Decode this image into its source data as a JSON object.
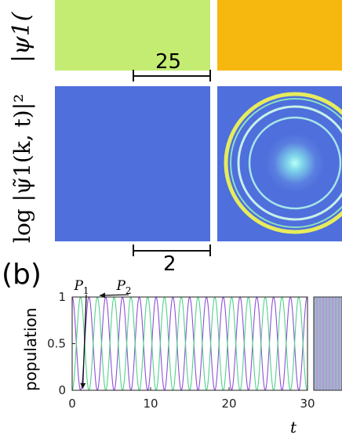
{
  "top_row": {
    "ylabel": "|ψ1(",
    "left_color": "#c4ec72",
    "right_color": "#f6b80e"
  },
  "fourier_row": {
    "ylabel": "log |ψ̃1(k, t)|²",
    "bg_color": "#4e6fdc"
  },
  "scale_bar_top": {
    "label": "25"
  },
  "scale_bar_mid": {
    "label": "2"
  },
  "panel_b": {
    "label": "(b)"
  },
  "chart_data": {
    "type": "line",
    "title": "",
    "xlabel": "t",
    "ylabel": "population",
    "xlim": [
      0,
      30
    ],
    "ylim": [
      0,
      1
    ],
    "x_ticks": [
      "0",
      "10",
      "20",
      "30"
    ],
    "y_ticks": [
      "0",
      "0.5",
      "1"
    ],
    "period": 2.14,
    "series": [
      {
        "name": "P1",
        "color": "#8e4fd8",
        "function": "cos2"
      },
      {
        "name": "P2",
        "color": "#4fd28a",
        "function": "sin2"
      }
    ],
    "annotations": [
      {
        "text": "P1",
        "series": "P1"
      },
      {
        "text": "P2",
        "series": "P2"
      }
    ]
  }
}
